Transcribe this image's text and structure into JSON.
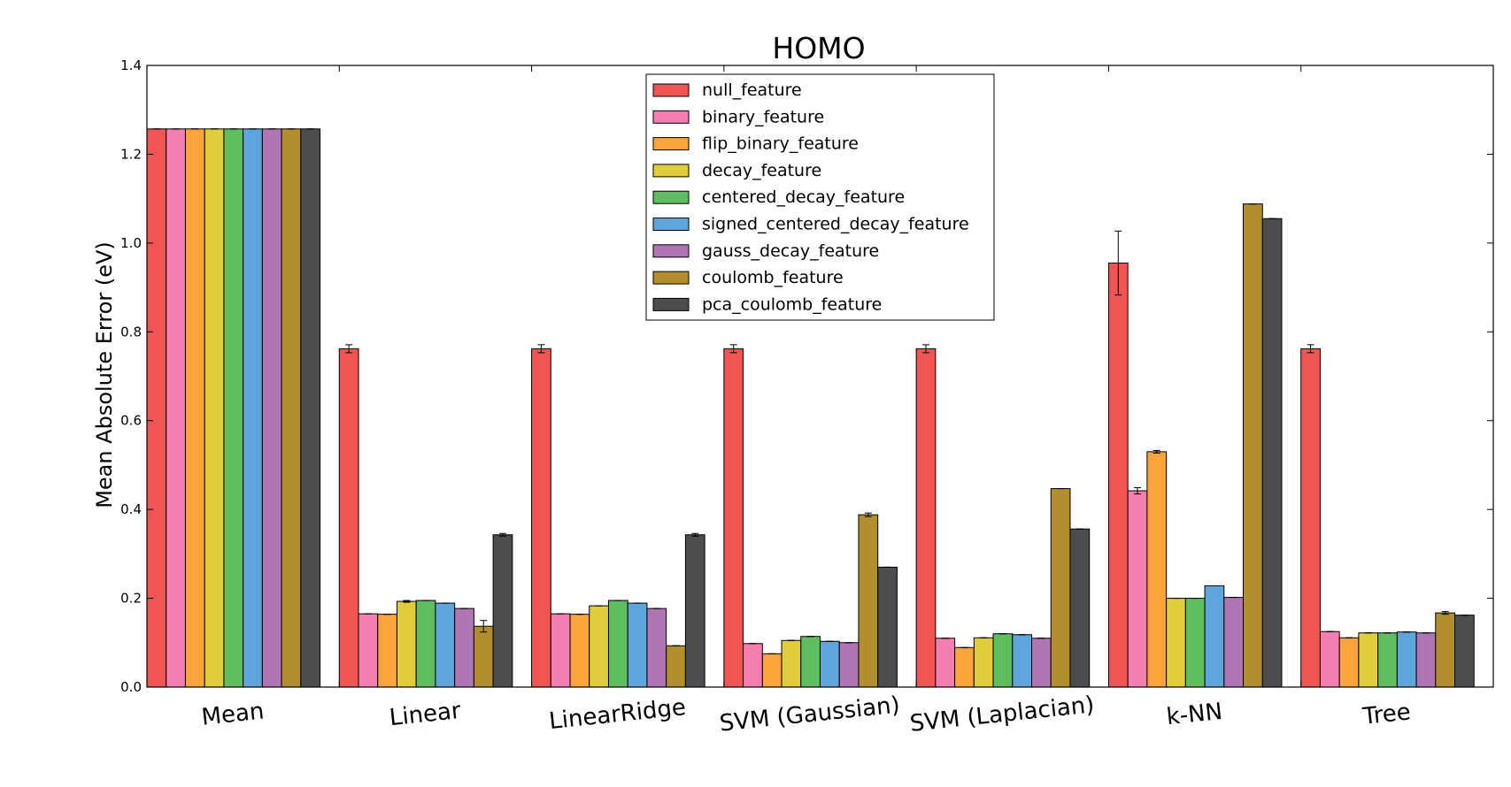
{
  "chart_data": {
    "type": "bar",
    "title": "HOMO",
    "xlabel": "",
    "ylabel": "Mean Absolute Error (eV)",
    "ylim": [
      0.0,
      1.4
    ],
    "yticks": [
      "0.0",
      "0.2",
      "0.4",
      "0.6",
      "0.8",
      "1.0",
      "1.2",
      "1.4"
    ],
    "grid": false,
    "legend_position": "top-center",
    "categories": [
      "Mean",
      "Linear",
      "LinearRidge",
      "SVM (Gaussian)",
      "SVM (Laplacian)",
      "k-NN",
      "Tree"
    ],
    "series": [
      {
        "name": "null_feature",
        "color": "#f05553",
        "values": [
          1.257,
          0.762,
          0.762,
          0.762,
          0.762,
          0.955,
          0.762
        ],
        "errors": [
          0.0,
          0.009,
          0.009,
          0.009,
          0.009,
          0.072,
          0.009
        ]
      },
      {
        "name": "binary_feature",
        "color": "#f37fb0",
        "values": [
          1.257,
          0.165,
          0.165,
          0.098,
          0.11,
          0.442,
          0.125
        ],
        "errors": [
          0.0,
          0.0,
          0.0,
          0.0,
          0.0,
          0.007,
          0.0
        ]
      },
      {
        "name": "flip_binary_feature",
        "color": "#fba43c",
        "values": [
          1.257,
          0.164,
          0.164,
          0.075,
          0.089,
          0.53,
          0.111
        ],
        "errors": [
          0.0,
          0.0,
          0.0,
          0.0,
          0.0,
          0.003,
          0.0
        ]
      },
      {
        "name": "decay_feature",
        "color": "#dfcd3d",
        "values": [
          1.257,
          0.193,
          0.183,
          0.105,
          0.111,
          0.2,
          0.122
        ],
        "errors": [
          0.0,
          0.002,
          0.0,
          0.0,
          0.0,
          0.0,
          0.0
        ]
      },
      {
        "name": "centered_decay_feature",
        "color": "#5ebd5f",
        "values": [
          1.257,
          0.195,
          0.195,
          0.114,
          0.12,
          0.2,
          0.122
        ],
        "errors": [
          0.0,
          0.0,
          0.0,
          0.0,
          0.0,
          0.0,
          0.0
        ]
      },
      {
        "name": "signed_centered_decay_feature",
        "color": "#5da5da",
        "values": [
          1.257,
          0.189,
          0.189,
          0.103,
          0.118,
          0.228,
          0.124
        ],
        "errors": [
          0.0,
          0.0,
          0.0,
          0.0,
          0.0,
          0.0,
          0.0
        ]
      },
      {
        "name": "gauss_decay_feature",
        "color": "#b075b3",
        "values": [
          1.257,
          0.177,
          0.177,
          0.1,
          0.11,
          0.202,
          0.122
        ],
        "errors": [
          0.0,
          0.0,
          0.0,
          0.0,
          0.0,
          0.0,
          0.0
        ]
      },
      {
        "name": "coulomb_feature",
        "color": "#b28f2e",
        "values": [
          1.257,
          0.137,
          0.093,
          0.388,
          0.447,
          1.088,
          0.167
        ],
        "errors": [
          0.0,
          0.013,
          0.0,
          0.004,
          0.0,
          0.0,
          0.003
        ]
      },
      {
        "name": "pca_coulomb_feature",
        "color": "#4d4d4d",
        "values": [
          1.257,
          0.343,
          0.343,
          0.27,
          0.356,
          1.055,
          0.162
        ],
        "errors": [
          0.0,
          0.003,
          0.003,
          0.0,
          0.0,
          0.0,
          0.0
        ]
      }
    ]
  }
}
